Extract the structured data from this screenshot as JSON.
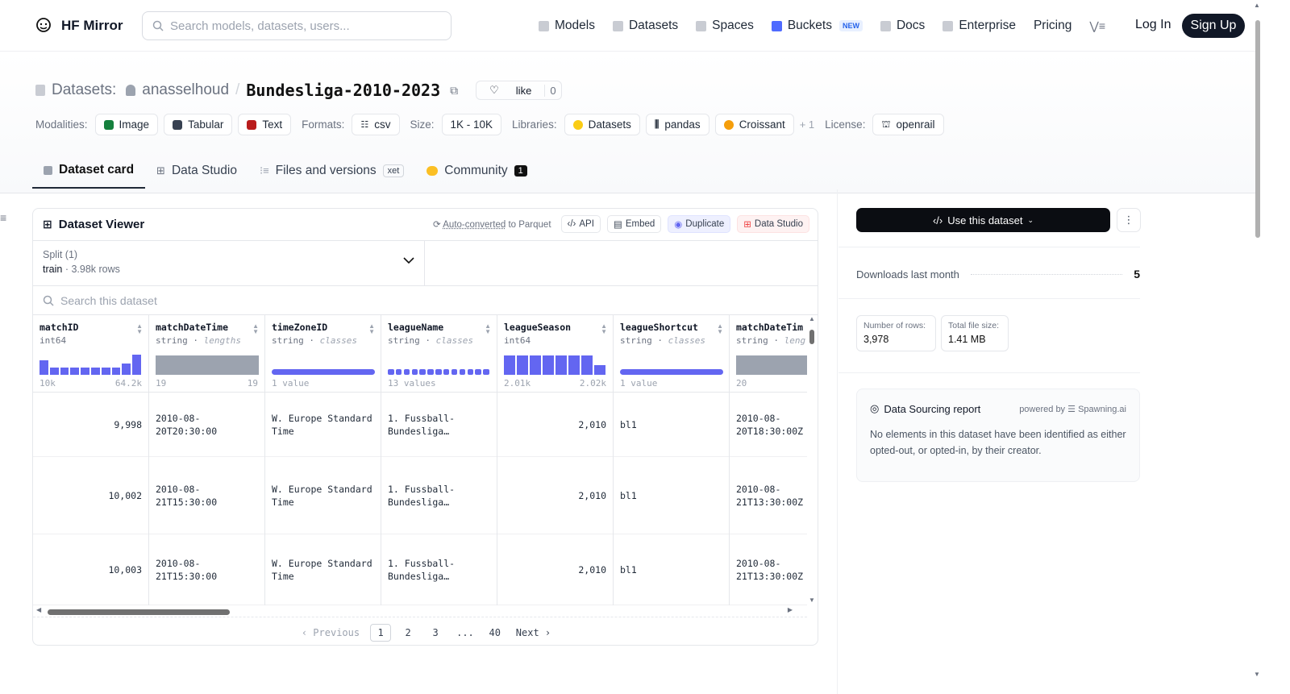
{
  "nav": {
    "brand": "HF Mirror",
    "search_placeholder": "Search models, datasets, users...",
    "links": [
      "Models",
      "Datasets",
      "Spaces",
      "Buckets",
      "Docs",
      "Enterprise",
      "Pricing"
    ],
    "new_badge": "NEW",
    "login": "Log In",
    "signup": "Sign Up"
  },
  "header": {
    "section": "Datasets:",
    "owner": "anasselhoud",
    "separator": "/",
    "name": "Bundesliga-2010-2023",
    "like_label": "like",
    "like_count": "0"
  },
  "meta": {
    "modalities_label": "Modalities:",
    "modalities": [
      "Image",
      "Tabular",
      "Text"
    ],
    "formats_label": "Formats:",
    "format": "csv",
    "size_label": "Size:",
    "size": "1K - 10K",
    "libraries_label": "Libraries:",
    "libraries": [
      "Datasets",
      "pandas",
      "Croissant"
    ],
    "libraries_more": "+ 1",
    "license_label": "License:",
    "license": "openrail"
  },
  "tabs": {
    "card": "Dataset card",
    "studio": "Data Studio",
    "files": "Files and versions",
    "xet": "xet",
    "community": "Community",
    "community_count": "1"
  },
  "viewer": {
    "title": "Dataset Viewer",
    "auto_link": "Auto-converted",
    "auto_rest": "to Parquet",
    "api": "API",
    "embed": "Embed",
    "duplicate": "Duplicate",
    "data_studio": "Data Studio",
    "split_label": "Split (1)",
    "split_name": "train",
    "split_rows": "3.98k rows",
    "search_placeholder": "Search this dataset",
    "columns": [
      {
        "name": "matchID",
        "type": "int64",
        "hint": "",
        "min": "10k",
        "max": "64.2k"
      },
      {
        "name": "matchDateTime",
        "type": "string",
        "hint": "lengths",
        "min": "19",
        "max": "19"
      },
      {
        "name": "timeZoneID",
        "type": "string",
        "hint": "classes",
        "min": "1 value",
        "max": ""
      },
      {
        "name": "leagueName",
        "type": "string",
        "hint": "classes",
        "min": "13 values",
        "max": ""
      },
      {
        "name": "leagueSeason",
        "type": "int64",
        "hint": "",
        "min": "2.01k",
        "max": "2.02k"
      },
      {
        "name": "leagueShortcut",
        "type": "string",
        "hint": "classes",
        "min": "1 value",
        "max": ""
      },
      {
        "name": "matchDateTim",
        "type": "string",
        "hint": "leng",
        "min": "20",
        "max": ""
      }
    ],
    "rows": [
      [
        "9,998",
        "2010-08-\n20T20:30:00",
        "W. Europe Standard\nTime",
        "1. Fussball-\nBundesliga…",
        "2,010",
        "bl1",
        "2010-08-\n20T18:30:00Z"
      ],
      [
        "10,002",
        "2010-08-\n21T15:30:00",
        "W. Europe Standard\nTime",
        "1. Fussball-\nBundesliga…",
        "2,010",
        "bl1",
        "2010-08-\n21T13:30:00Z"
      ],
      [
        "10,003",
        "2010-08-\n21T15:30:00",
        "W. Europe Standard\nTime",
        "1. Fussball-\nBundesliga…",
        "2,010",
        "bl1",
        "2010-08-\n21T13:30:00Z"
      ]
    ],
    "pager": {
      "prev": "‹ Previous",
      "pages": [
        "1",
        "2",
        "3",
        "...",
        "40"
      ],
      "next": "Next ›"
    }
  },
  "sidebar": {
    "use_dataset": "Use this dataset",
    "downloads_label": "Downloads last month",
    "downloads_value": "5",
    "rows_label": "Number of rows:",
    "rows_value": "3,978",
    "filesize_label": "Total file size:",
    "filesize_value": "1.41 MB",
    "report_title": "Data Sourcing report",
    "powered_by": "powered by",
    "powered_name": "Spawning.ai",
    "report_body": "No elements in this dataset have been identified as either opted-out, or opted-in, by their creator."
  },
  "colors": {
    "accent_bar": "#6366f1",
    "gray_bar": "#9ca3af"
  }
}
